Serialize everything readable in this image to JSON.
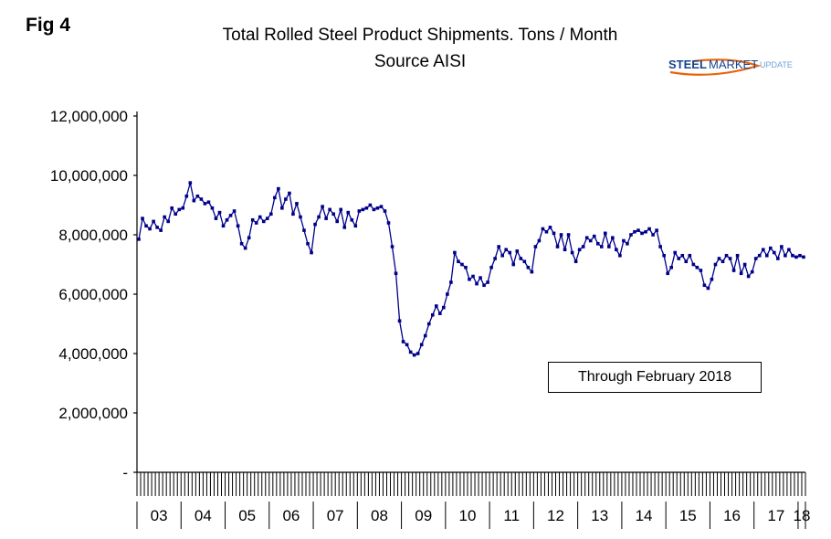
{
  "fig_label": "Fig 4",
  "title": "Total Rolled Steel Product Shipments. Tons / Month",
  "subtitle": "Source AISI",
  "logo": {
    "part1": "STEEL",
    "part2": "MARKET",
    "part3": "UPDATE",
    "swoosh_color": "#E8630A",
    "text_color": "#17458F",
    "light_text_color": "#6FA0D6"
  },
  "annotation": "Through February 2018",
  "chart_data": {
    "type": "line",
    "title": "Total Rolled Steel Product Shipments. Tons / Month",
    "subtitle": "Source AISI",
    "series_name": "Total rolled steel product shipments (tons/month)",
    "start_year": 2003,
    "end_label": "Through February 2018",
    "x_year_labels": [
      "03",
      "04",
      "05",
      "06",
      "07",
      "08",
      "09",
      "10",
      "11",
      "12",
      "13",
      "14",
      "15",
      "16",
      "17",
      "18"
    ],
    "months_in_last_year": 2,
    "ylim": [
      0,
      12000000
    ],
    "y_tick_step": 2000000,
    "y_zero_label": "-",
    "grid": false,
    "line_color": "#00008B",
    "marker": "square",
    "values": [
      7850000,
      8550000,
      8300000,
      8200000,
      8450000,
      8250000,
      8150000,
      8600000,
      8450000,
      8900000,
      8700000,
      8850000,
      8900000,
      9300000,
      9750000,
      9150000,
      9300000,
      9200000,
      9050000,
      9100000,
      8900000,
      8550000,
      8750000,
      8300000,
      8500000,
      8650000,
      8800000,
      8300000,
      7700000,
      7550000,
      7900000,
      8500000,
      8400000,
      8600000,
      8450000,
      8550000,
      8700000,
      9250000,
      9550000,
      8900000,
      9200000,
      9400000,
      8700000,
      9050000,
      8600000,
      8150000,
      7700000,
      7400000,
      8350000,
      8600000,
      8950000,
      8550000,
      8850000,
      8700000,
      8450000,
      8850000,
      8250000,
      8750000,
      8500000,
      8300000,
      8800000,
      8850000,
      8900000,
      9000000,
      8850000,
      8900000,
      8950000,
      8800000,
      8400000,
      7600000,
      6700000,
      5100000,
      4400000,
      4300000,
      4050000,
      3950000,
      4000000,
      4300000,
      4600000,
      5000000,
      5300000,
      5600000,
      5350000,
      5550000,
      6000000,
      6400000,
      7400000,
      7100000,
      7000000,
      6900000,
      6500000,
      6600000,
      6350000,
      6550000,
      6300000,
      6400000,
      6900000,
      7200000,
      7600000,
      7300000,
      7500000,
      7400000,
      7000000,
      7450000,
      7200000,
      7100000,
      6900000,
      6750000,
      7600000,
      7800000,
      8200000,
      8100000,
      8250000,
      8050000,
      7600000,
      8000000,
      7500000,
      8000000,
      7400000,
      7100000,
      7500000,
      7600000,
      7900000,
      7800000,
      7950000,
      7700000,
      7600000,
      8050000,
      7600000,
      7900000,
      7500000,
      7300000,
      7800000,
      7700000,
      8000000,
      8100000,
      8150000,
      8050000,
      8100000,
      8200000,
      8000000,
      8150000,
      7600000,
      7300000,
      6700000,
      6900000,
      7400000,
      7200000,
      7300000,
      7100000,
      7300000,
      7000000,
      6900000,
      6800000,
      6300000,
      6200000,
      6500000,
      7000000,
      7200000,
      7100000,
      7300000,
      7200000,
      6800000,
      7300000,
      6700000,
      7000000,
      6600000,
      6750000,
      7200000,
      7300000,
      7500000,
      7300000,
      7550000,
      7400000,
      7200000,
      7600000,
      7300000,
      7500000,
      7300000,
      7250000,
      7300000,
      7250000
    ]
  }
}
